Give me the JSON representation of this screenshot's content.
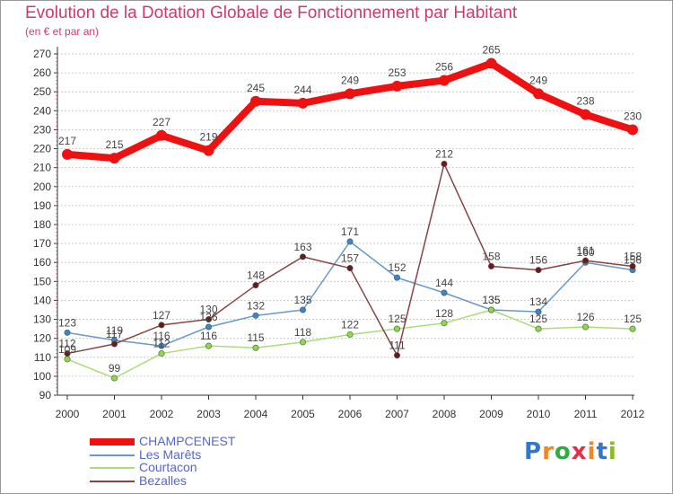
{
  "title": "Evolution de la Dotation Globale de Fonctionnement par Habitant",
  "subtitle": "(en € et par an)",
  "logo_text": "Proxiti",
  "colors": {
    "title": "#cc3b6d",
    "legend_text": "#5566cc",
    "grid": "#cccccc",
    "axis": "#333333"
  },
  "chart_data": {
    "type": "line",
    "categories": [
      "2000",
      "2001",
      "2002",
      "2003",
      "2004",
      "2005",
      "2006",
      "2007",
      "2008",
      "2009",
      "2010",
      "2011",
      "2012"
    ],
    "ylim": [
      90,
      270
    ],
    "ytick_step": 10,
    "grid": true,
    "legend_position": "bottom-left",
    "series": [
      {
        "name": "CHAMPCENEST",
        "color": "#ee1111",
        "marker_color": "#ee1111",
        "style": "thick",
        "values": [
          217,
          215,
          227,
          219,
          245,
          244,
          249,
          253,
          256,
          265,
          249,
          238,
          230
        ]
      },
      {
        "name": "Les Marêts",
        "color": "#6699cc",
        "marker_color": "#3a86c8",
        "style": "thin",
        "values": [
          123,
          119,
          116,
          126,
          132,
          135,
          171,
          152,
          144,
          135,
          134,
          160,
          156
        ]
      },
      {
        "name": "Courtacon",
        "color": "#aadd77",
        "marker_color": "#88dd44",
        "style": "thin",
        "values": [
          109,
          99,
          112,
          116,
          115,
          118,
          122,
          125,
          128,
          135,
          125,
          126,
          125
        ]
      },
      {
        "name": "Bezalles",
        "color": "#884444",
        "marker_color": "#6b1a1a",
        "style": "thin",
        "values": [
          112,
          117,
          127,
          130,
          148,
          163,
          157,
          111,
          212,
          158,
          156,
          161,
          158
        ]
      }
    ]
  }
}
